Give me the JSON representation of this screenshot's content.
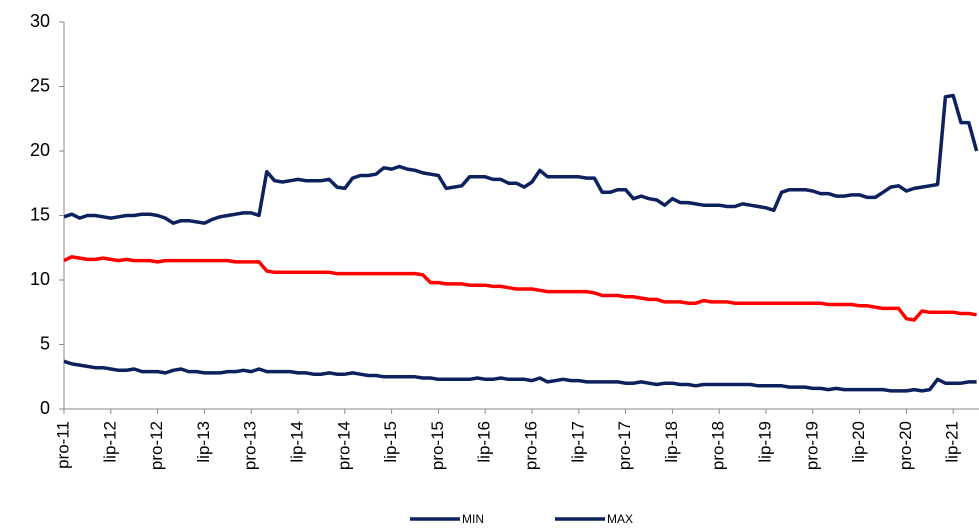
{
  "chart_data": {
    "type": "line",
    "categories": [
      "pro-11",
      null,
      null,
      null,
      null,
      null,
      "lip-12",
      null,
      null,
      null,
      null,
      null,
      "pro-12",
      null,
      null,
      null,
      null,
      null,
      "lip-13",
      null,
      null,
      null,
      null,
      null,
      "pro-13",
      null,
      null,
      null,
      null,
      null,
      "lip-14",
      null,
      null,
      null,
      null,
      null,
      "pro-14",
      null,
      null,
      null,
      null,
      null,
      "lip-15",
      null,
      null,
      null,
      null,
      null,
      "pro-15",
      null,
      null,
      null,
      null,
      null,
      "lip-16",
      null,
      null,
      null,
      null,
      null,
      "pro-16",
      null,
      null,
      null,
      null,
      null,
      "lip-17",
      null,
      null,
      null,
      null,
      null,
      "pro-17",
      null,
      null,
      null,
      null,
      null,
      "lip-18",
      null,
      null,
      null,
      null,
      null,
      "pro-18",
      null,
      null,
      null,
      null,
      null,
      "lip-19",
      null,
      null,
      null,
      null,
      null,
      "pro-19",
      null,
      null,
      null,
      null,
      null,
      "lip-20",
      null,
      null,
      null,
      null,
      null,
      "pro-20",
      null,
      null,
      null,
      null,
      null,
      "lip-21",
      null,
      null,
      null
    ],
    "series": [
      {
        "name": "MIN",
        "color": "#0c215e",
        "values": [
          3.7,
          3.5,
          3.4,
          3.3,
          3.2,
          3.2,
          3.1,
          3.0,
          3.0,
          3.1,
          2.9,
          2.9,
          2.9,
          2.8,
          3.0,
          3.1,
          2.9,
          2.9,
          2.8,
          2.8,
          2.8,
          2.9,
          2.9,
          3.0,
          2.9,
          3.1,
          2.9,
          2.9,
          2.9,
          2.9,
          2.8,
          2.8,
          2.7,
          2.7,
          2.8,
          2.7,
          2.7,
          2.8,
          2.7,
          2.6,
          2.6,
          2.5,
          2.5,
          2.5,
          2.5,
          2.5,
          2.4,
          2.4,
          2.3,
          2.3,
          2.3,
          2.3,
          2.3,
          2.4,
          2.3,
          2.3,
          2.4,
          2.3,
          2.3,
          2.3,
          2.2,
          2.4,
          2.1,
          2.2,
          2.3,
          2.2,
          2.2,
          2.1,
          2.1,
          2.1,
          2.1,
          2.1,
          2.0,
          2.0,
          2.1,
          2.0,
          1.9,
          2.0,
          2.0,
          1.9,
          1.9,
          1.8,
          1.9,
          1.9,
          1.9,
          1.9,
          1.9,
          1.9,
          1.9,
          1.8,
          1.8,
          1.8,
          1.8,
          1.7,
          1.7,
          1.7,
          1.6,
          1.6,
          1.5,
          1.6,
          1.5,
          1.5,
          1.5,
          1.5,
          1.5,
          1.5,
          1.4,
          1.4,
          1.4,
          1.5,
          1.4,
          1.5,
          2.3,
          2.0,
          2.0,
          2.0,
          2.1,
          2.1
        ]
      },
      {
        "name": "MAX",
        "color": "#0c215e",
        "values": [
          14.9,
          15.1,
          14.8,
          15.0,
          15.0,
          14.9,
          14.8,
          14.9,
          15.0,
          15.0,
          15.1,
          15.1,
          15.0,
          14.8,
          14.4,
          14.6,
          14.6,
          14.5,
          14.4,
          14.7,
          14.9,
          15.0,
          15.1,
          15.2,
          15.2,
          15.0,
          18.4,
          17.7,
          17.6,
          17.7,
          17.8,
          17.7,
          17.7,
          17.7,
          17.8,
          17.2,
          17.1,
          17.9,
          18.1,
          18.1,
          18.2,
          18.7,
          18.6,
          18.8,
          18.6,
          18.5,
          18.3,
          18.2,
          18.1,
          17.1,
          17.2,
          17.3,
          18.0,
          18.0,
          18.0,
          17.8,
          17.8,
          17.5,
          17.5,
          17.2,
          17.6,
          18.5,
          18.0,
          18.0,
          18.0,
          18.0,
          18.0,
          17.9,
          17.9,
          16.8,
          16.8,
          17.0,
          17.0,
          16.3,
          16.5,
          16.3,
          16.2,
          15.8,
          16.3,
          16.0,
          16.0,
          15.9,
          15.8,
          15.8,
          15.8,
          15.7,
          15.7,
          15.9,
          15.8,
          15.7,
          15.6,
          15.4,
          16.8,
          17.0,
          17.0,
          17.0,
          16.9,
          16.7,
          16.7,
          16.5,
          16.5,
          16.6,
          16.6,
          16.4,
          16.4,
          16.8,
          17.2,
          17.3,
          16.9,
          17.1,
          17.2,
          17.3,
          17.4,
          24.2,
          24.3,
          22.2,
          22.2,
          20.0
        ]
      },
      {
        "color": "#ff0000",
        "values": [
          11.5,
          11.8,
          11.7,
          11.6,
          11.6,
          11.7,
          11.6,
          11.5,
          11.6,
          11.5,
          11.5,
          11.5,
          11.4,
          11.5,
          11.5,
          11.5,
          11.5,
          11.5,
          11.5,
          11.5,
          11.5,
          11.5,
          11.4,
          11.4,
          11.4,
          11.4,
          10.7,
          10.6,
          10.6,
          10.6,
          10.6,
          10.6,
          10.6,
          10.6,
          10.6,
          10.5,
          10.5,
          10.5,
          10.5,
          10.5,
          10.5,
          10.5,
          10.5,
          10.5,
          10.5,
          10.5,
          10.4,
          9.8,
          9.8,
          9.7,
          9.7,
          9.7,
          9.6,
          9.6,
          9.6,
          9.5,
          9.5,
          9.4,
          9.3,
          9.3,
          9.3,
          9.2,
          9.1,
          9.1,
          9.1,
          9.1,
          9.1,
          9.1,
          9.0,
          8.8,
          8.8,
          8.8,
          8.7,
          8.7,
          8.6,
          8.5,
          8.5,
          8.3,
          8.3,
          8.3,
          8.2,
          8.2,
          8.4,
          8.3,
          8.3,
          8.3,
          8.2,
          8.2,
          8.2,
          8.2,
          8.2,
          8.2,
          8.2,
          8.2,
          8.2,
          8.2,
          8.2,
          8.2,
          8.1,
          8.1,
          8.1,
          8.1,
          8.0,
          8.0,
          7.9,
          7.8,
          7.8,
          7.8,
          7.0,
          6.9,
          7.6,
          7.5,
          7.5,
          7.5,
          7.5,
          7.4,
          7.4,
          7.3
        ]
      }
    ],
    "ylim": [
      0,
      30
    ],
    "yticks": [
      0,
      5,
      10,
      15,
      20,
      25,
      30
    ],
    "grid": false,
    "legend": "bottom"
  }
}
